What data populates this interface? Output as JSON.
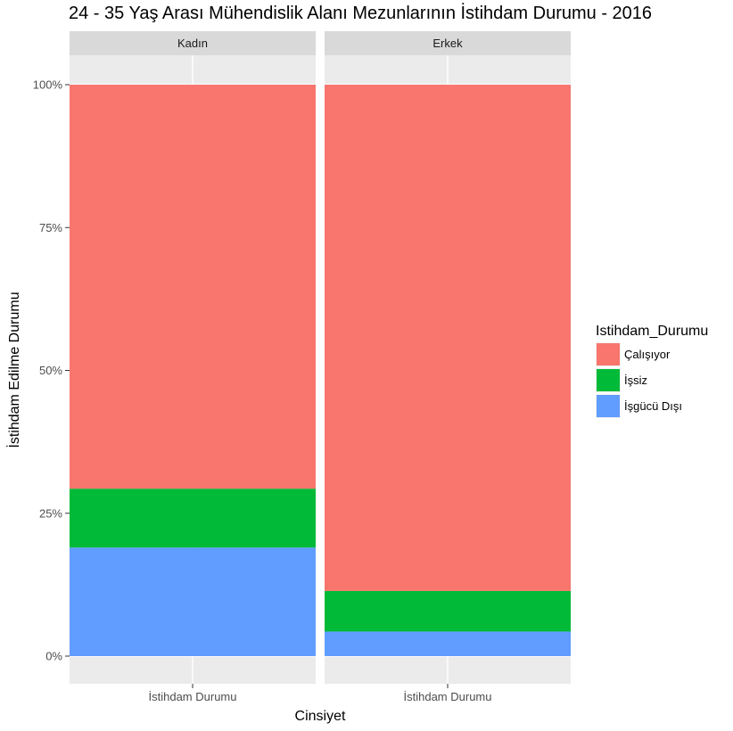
{
  "chart_data": {
    "type": "bar",
    "stacked": "percent",
    "title": "24 - 35 Yaş Arası Mühendislik Alanı Mezunlarının İstihdam Durumu - 2016",
    "xlabel": "Cinsiyet",
    "ylabel": "İstihdam Edilme Durumu",
    "ylim": [
      0,
      1
    ],
    "yticks": [
      {
        "value": 0,
        "label": "0%"
      },
      {
        "value": 0.25,
        "label": "25%"
      },
      {
        "value": 0.5,
        "label": "50%"
      },
      {
        "value": 0.75,
        "label": "75%"
      },
      {
        "value": 1,
        "label": "100%"
      }
    ],
    "legend": {
      "title": "Istihdam_Durumu",
      "position": "right"
    },
    "series": [
      {
        "name": "Çalışıyor",
        "color": "#F8766D"
      },
      {
        "name": "İşsiz",
        "color": "#00BA38"
      },
      {
        "name": "İşgücü Dışı",
        "color": "#619CFF"
      }
    ],
    "facets": [
      {
        "label": "Kadın",
        "category": "İstihdam Durumu",
        "values": {
          "Çalışıyor": 0.707,
          "İşsiz": 0.103,
          "İşgücü Dışı": 0.19
        }
      },
      {
        "label": "Erkek",
        "category": "İstihdam Durumu",
        "values": {
          "Çalışıyor": 0.886,
          "İşsiz": 0.071,
          "İşgücü Dışı": 0.043
        }
      }
    ],
    "grid": true
  }
}
